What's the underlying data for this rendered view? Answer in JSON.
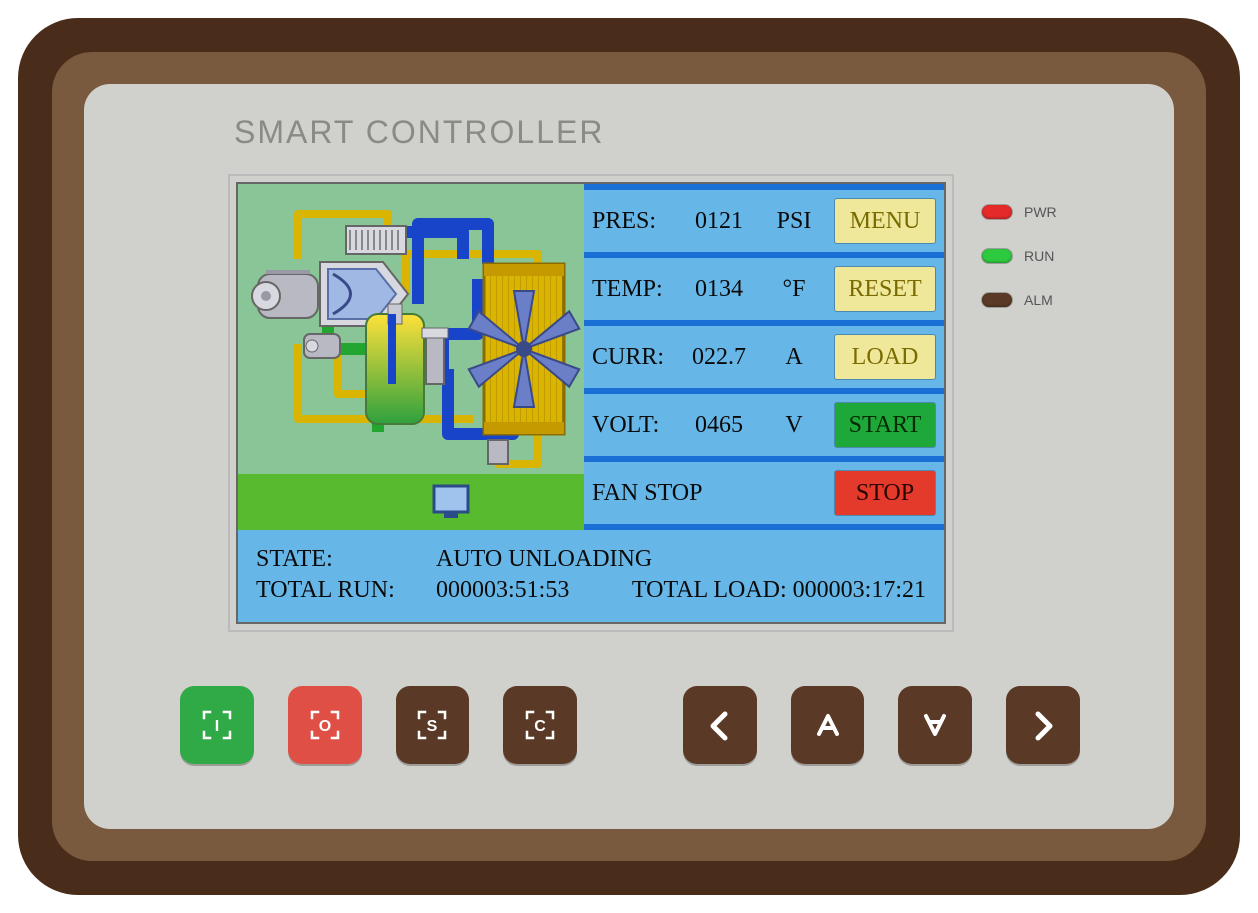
{
  "header": {
    "title": "SMART CONTROLLER"
  },
  "colors": {
    "bezel_outer": "#4a2c1a",
    "bezel_mid": "#7a5a3e",
    "face": "#d0d0cc",
    "screen_bg": "#67b6e8",
    "row_divider": "#1a6fd6",
    "diagram_bg": "#89c597",
    "diagram_ground": "#58bb2f",
    "pipe_yellow": "#d9b400",
    "pipe_blue": "#1844c9",
    "pipe_green": "#22a62f",
    "metal": "#b9b9c4",
    "metal_light": "#d8d8e0",
    "tank_top": "#ffe13a",
    "tank_bottom": "#2fa03e",
    "btn_yellow_bg": "#efe79a",
    "btn_yellow_fg": "#7a6b00",
    "btn_green_bg": "#1fa83a",
    "btn_green_fg": "#0a3a00",
    "btn_red_bg": "#e43a2c",
    "btn_red_fg": "#5a0a00",
    "hw_brown": "#5a3a26",
    "hw_green": "#2faa46",
    "hw_red": "#e04f45",
    "led_pwr": "#e52a2a",
    "led_run": "#2dc93f",
    "led_alm": "#5a3a26"
  },
  "readouts": [
    {
      "label": "PRES:",
      "value": "0121",
      "unit": "PSI",
      "button": {
        "text": "MENU",
        "bg": "#efe79a",
        "fg": "#7a6b00"
      }
    },
    {
      "label": "TEMP:",
      "value": "0134",
      "unit": "°F",
      "button": {
        "text": "RESET",
        "bg": "#efe79a",
        "fg": "#7a6b00"
      }
    },
    {
      "label": "CURR:",
      "value": "022.7",
      "unit": "A",
      "button": {
        "text": "LOAD",
        "bg": "#efe79a",
        "fg": "#7a6b00"
      }
    },
    {
      "label": "VOLT:",
      "value": "0465",
      "unit": "V",
      "button": {
        "text": "START",
        "bg": "#1fa83a",
        "fg": "#042a00"
      }
    },
    {
      "label": "FAN STOP",
      "value": "",
      "unit": "",
      "button": {
        "text": "STOP",
        "bg": "#e43a2c",
        "fg": "#2a0400"
      }
    }
  ],
  "status": {
    "state_label": "STATE:",
    "state_value": "AUTO UNLOADING",
    "total_run_label": "TOTAL RUN:",
    "total_run_value": "000003:51:53",
    "total_load_label": "TOTAL LOAD:",
    "total_load_value": "000003:17:21"
  },
  "leds": [
    {
      "name": "pwr",
      "label": "PWR",
      "color": "#e52a2a"
    },
    {
      "name": "run",
      "label": "RUN",
      "color": "#2dc93f"
    },
    {
      "name": "alm",
      "label": "ALM",
      "color": "#5a3a26"
    }
  ],
  "hw_buttons": [
    {
      "name": "start-button",
      "bg": "#2faa46",
      "glyph": "reticle-i"
    },
    {
      "name": "stop-button",
      "bg": "#e04f45",
      "glyph": "reticle-o"
    },
    {
      "name": "set-button",
      "bg": "#5a3a26",
      "glyph": "reticle-s"
    },
    {
      "name": "confirm-button",
      "bg": "#5a3a26",
      "glyph": "reticle-c"
    },
    {
      "name": "left-button",
      "bg": "#5a3a26",
      "glyph": "left"
    },
    {
      "name": "up-button",
      "bg": "#5a3a26",
      "glyph": "up"
    },
    {
      "name": "down-button",
      "bg": "#5a3a26",
      "glyph": "down"
    },
    {
      "name": "right-button",
      "bg": "#5a3a26",
      "glyph": "right"
    }
  ],
  "diagram": {
    "type": "infographic",
    "description": "compressor schematic",
    "bg": "#89c597",
    "ground": "#58bb2f",
    "fan_blades": 6,
    "fan_color": "#6a7fc8",
    "radiator_color": "#d9b400",
    "motor_color": "#b9b9c4"
  }
}
